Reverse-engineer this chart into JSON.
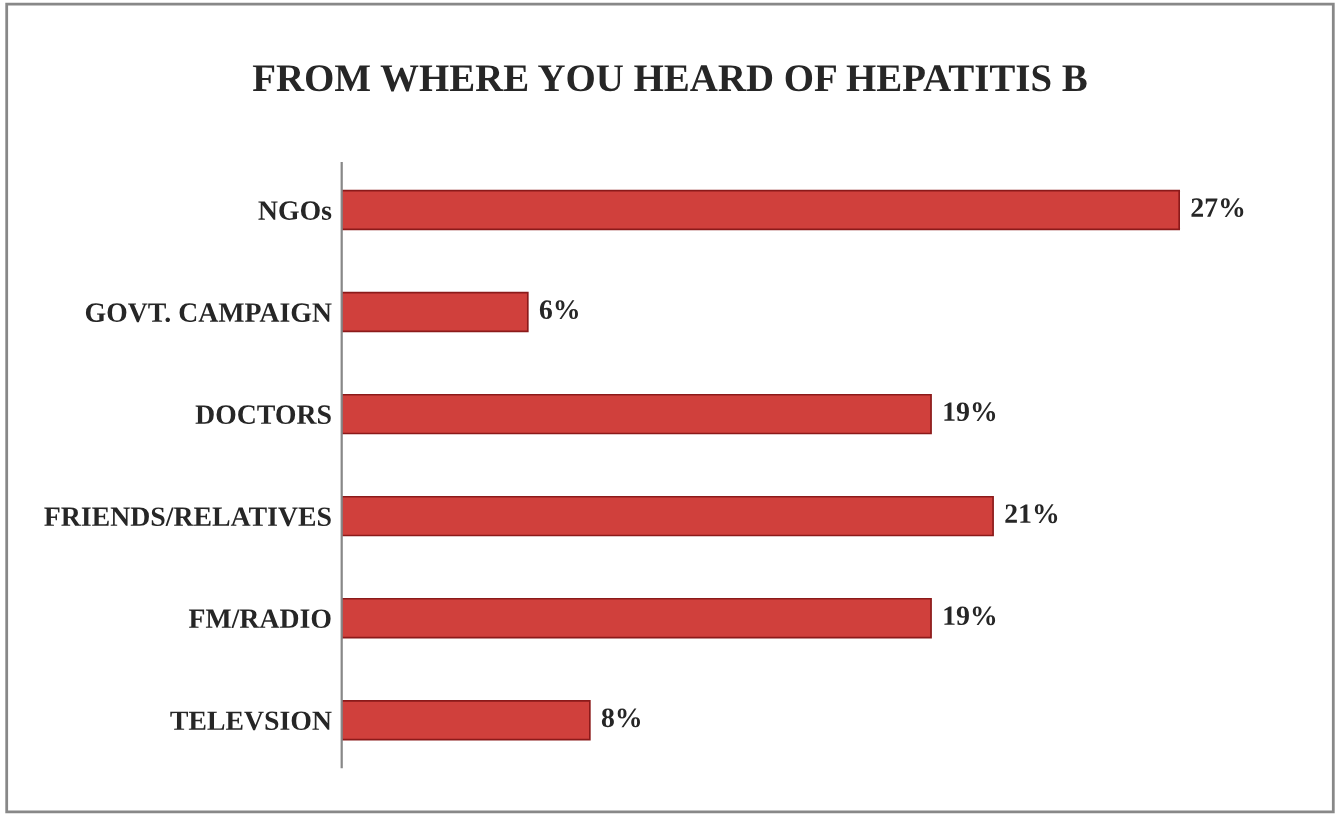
{
  "chart_data": {
    "type": "bar",
    "orientation": "horizontal",
    "title": "FROM WHERE YOU HEARD OF HEPATITIS B",
    "categories": [
      "NGOs",
      "GOVT. CAMPAIGN",
      "DOCTORS",
      "FRIENDS/RELATIVES",
      "FM/RADIO",
      "TELEVSION"
    ],
    "values": [
      27,
      6,
      19,
      21,
      19,
      8
    ],
    "value_labels": [
      "27%",
      "6%",
      "19%",
      "21%",
      "19%",
      "8%"
    ],
    "color": "#d0403c",
    "grid": false,
    "legend": false
  }
}
